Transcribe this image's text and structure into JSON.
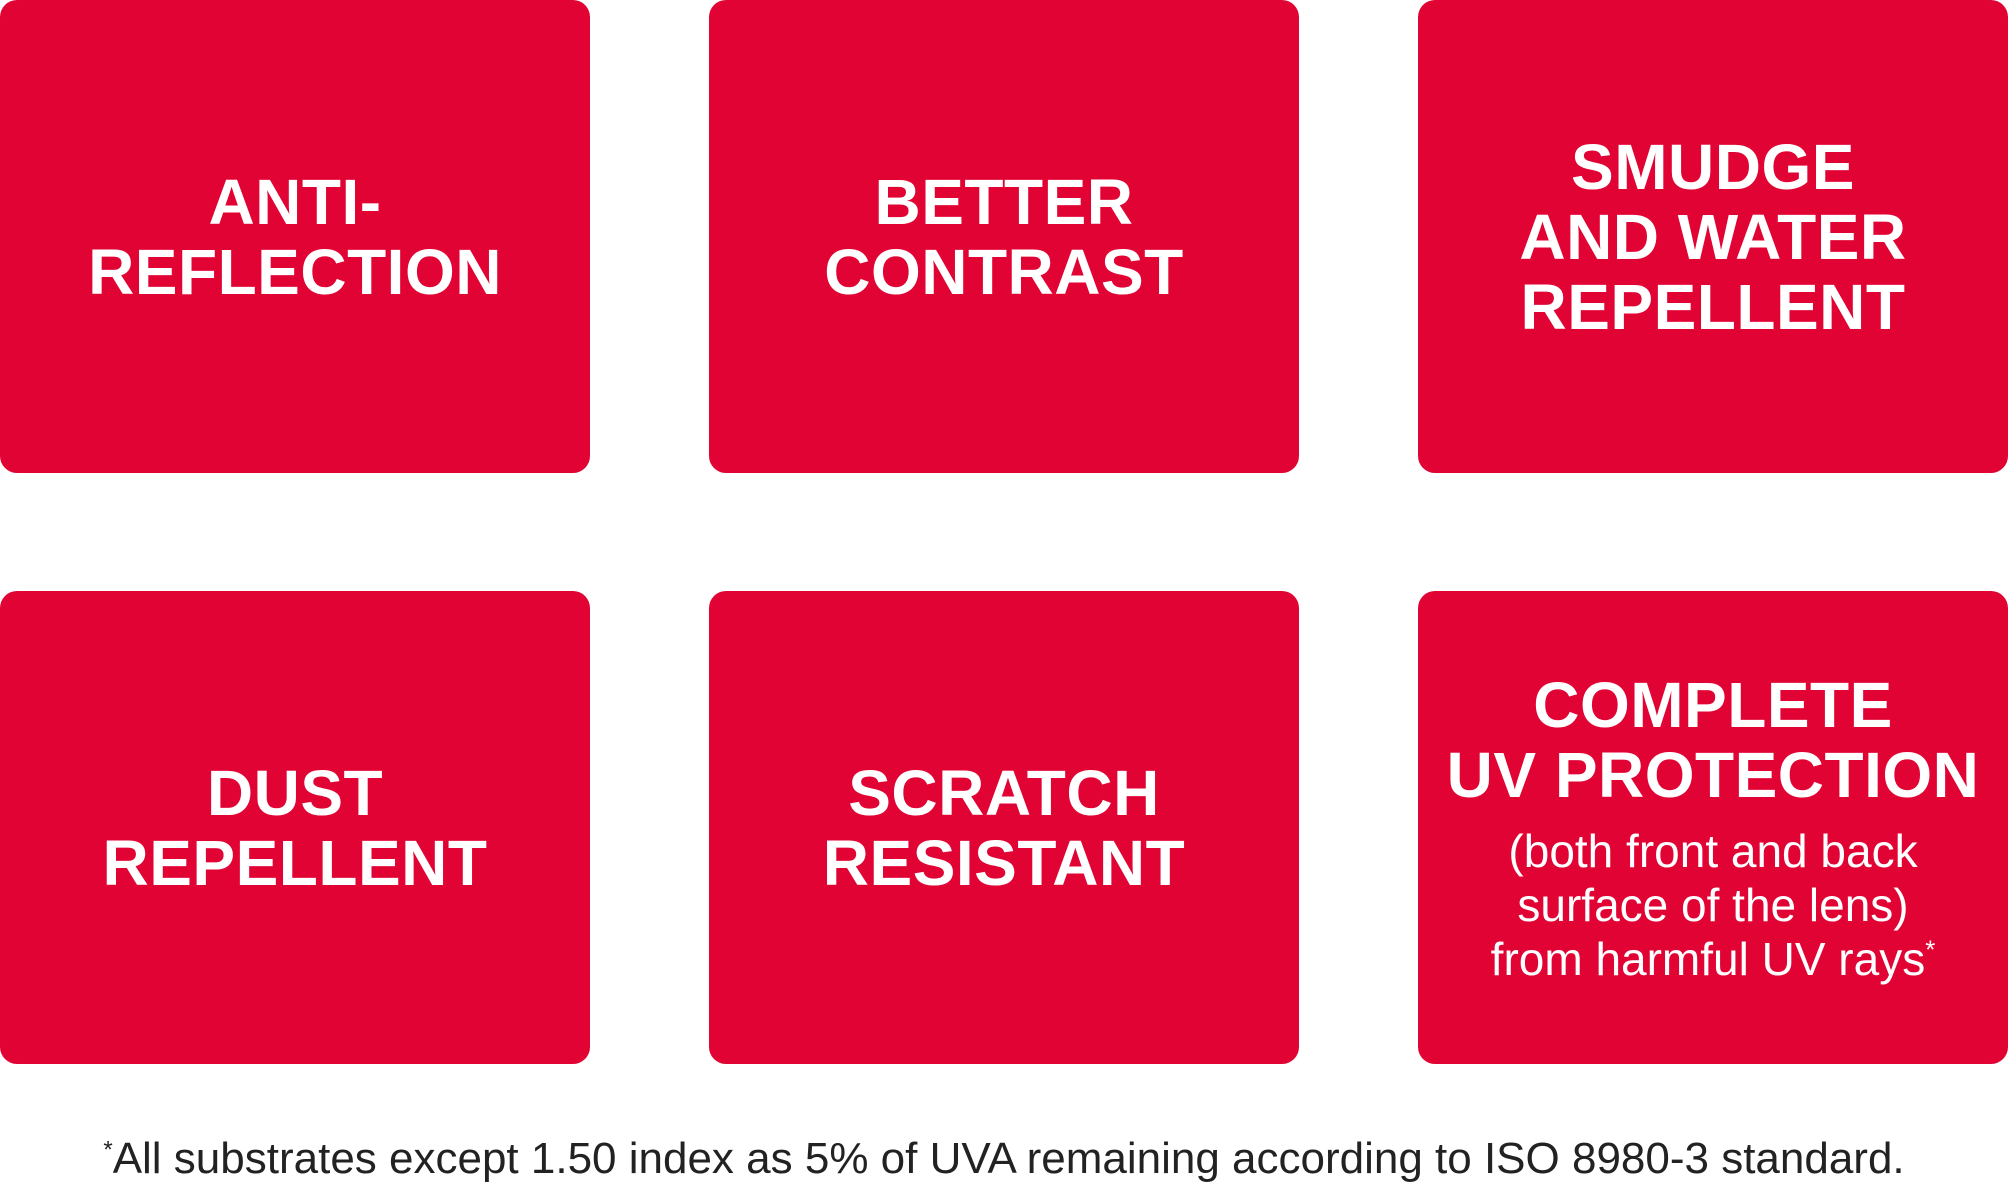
{
  "tiles": [
    {
      "lines": [
        "ANTI-",
        "REFLECTION"
      ]
    },
    {
      "lines": [
        "BETTER",
        "CONTRAST"
      ]
    },
    {
      "lines": [
        "SMUDGE",
        "AND WATER",
        "REPELLENT"
      ]
    },
    {
      "lines": [
        "DUST",
        "REPELLENT"
      ]
    },
    {
      "lines": [
        "SCRATCH",
        "RESISTANT"
      ]
    },
    {
      "lines": [
        "COMPLETE",
        "UV PROTECTION"
      ],
      "sub_lines": [
        "(both front and back",
        "surface of the lens)",
        "from harmful UV rays"
      ],
      "sub_marker": "*"
    }
  ],
  "footnote": {
    "marker": "*",
    "text": "All substrates except 1.50 index as 5% of UVA remaining according to ISO 8980-3 standard."
  },
  "colors": {
    "tile_background": "#e10333",
    "tile_text": "#ffffff",
    "footnote_text": "#222222"
  }
}
